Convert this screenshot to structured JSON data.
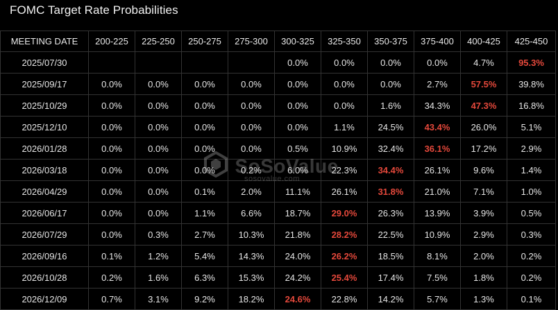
{
  "title": "FOMC Target Rate Probabilities",
  "columns": [
    "MEETING DATE",
    "200-225",
    "225-250",
    "250-275",
    "275-300",
    "300-325",
    "325-350",
    "350-375",
    "375-400",
    "400-425",
    "425-450"
  ],
  "highlight_color": "#e5483b",
  "rows": [
    {
      "date": "2025/07/30",
      "cells": [
        "",
        "",
        "",
        "",
        "0.0%",
        "0.0%",
        "0.0%",
        "0.0%",
        "4.7%",
        "95.3%"
      ],
      "hl": 9
    },
    {
      "date": "2025/09/17",
      "cells": [
        "0.0%",
        "0.0%",
        "0.0%",
        "0.0%",
        "0.0%",
        "0.0%",
        "0.0%",
        "2.7%",
        "57.5%",
        "39.8%"
      ],
      "hl": 8
    },
    {
      "date": "2025/10/29",
      "cells": [
        "0.0%",
        "0.0%",
        "0.0%",
        "0.0%",
        "0.0%",
        "0.0%",
        "1.6%",
        "34.3%",
        "47.3%",
        "16.8%"
      ],
      "hl": 8
    },
    {
      "date": "2025/12/10",
      "cells": [
        "0.0%",
        "0.0%",
        "0.0%",
        "0.0%",
        "0.0%",
        "1.1%",
        "24.5%",
        "43.4%",
        "26.0%",
        "5.1%"
      ],
      "hl": 7
    },
    {
      "date": "2026/01/28",
      "cells": [
        "0.0%",
        "0.0%",
        "0.0%",
        "0.0%",
        "0.5%",
        "10.9%",
        "32.4%",
        "36.1%",
        "17.2%",
        "2.9%"
      ],
      "hl": 7
    },
    {
      "date": "2026/03/18",
      "cells": [
        "0.0%",
        "0.0%",
        "0.0%",
        "0.2%",
        "6.0%",
        "22.3%",
        "34.4%",
        "26.1%",
        "9.6%",
        "1.4%"
      ],
      "hl": 6
    },
    {
      "date": "2026/04/29",
      "cells": [
        "0.0%",
        "0.0%",
        "0.1%",
        "2.0%",
        "11.1%",
        "26.1%",
        "31.8%",
        "21.0%",
        "7.1%",
        "1.0%"
      ],
      "hl": 6
    },
    {
      "date": "2026/06/17",
      "cells": [
        "0.0%",
        "0.0%",
        "1.1%",
        "6.6%",
        "18.7%",
        "29.0%",
        "26.3%",
        "13.9%",
        "3.9%",
        "0.5%"
      ],
      "hl": 5
    },
    {
      "date": "2026/07/29",
      "cells": [
        "0.0%",
        "0.3%",
        "2.7%",
        "10.3%",
        "21.8%",
        "28.2%",
        "22.5%",
        "10.9%",
        "2.9%",
        "0.3%"
      ],
      "hl": 5
    },
    {
      "date": "2026/09/16",
      "cells": [
        "0.1%",
        "1.2%",
        "5.4%",
        "14.3%",
        "24.0%",
        "26.2%",
        "18.5%",
        "8.1%",
        "2.0%",
        "0.2%"
      ],
      "hl": 5
    },
    {
      "date": "2026/10/28",
      "cells": [
        "0.2%",
        "1.6%",
        "6.3%",
        "15.3%",
        "24.2%",
        "25.4%",
        "17.4%",
        "7.5%",
        "1.8%",
        "0.2%"
      ],
      "hl": 5
    },
    {
      "date": "2026/12/09",
      "cells": [
        "0.7%",
        "3.1%",
        "9.2%",
        "18.2%",
        "24.6%",
        "22.8%",
        "14.2%",
        "5.7%",
        "1.3%",
        "0.1%"
      ],
      "hl": 4
    }
  ],
  "watermark": {
    "brand": "SoSoValue",
    "site": "sosovalue.com",
    "icon": "sosovalue-logo-icon"
  }
}
